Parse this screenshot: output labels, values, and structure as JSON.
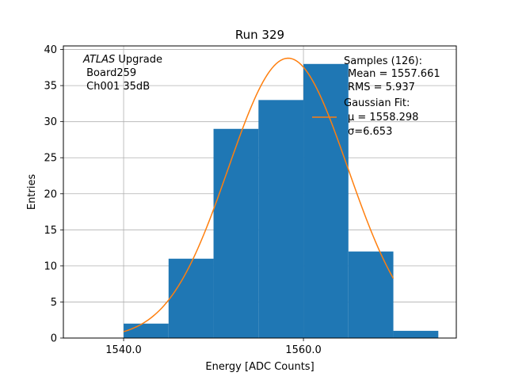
{
  "chart_data": {
    "type": "bar",
    "title": "Run 329",
    "xlabel": "Energy [ADC Counts]",
    "ylabel": "Entries",
    "xlim": [
      1533.3,
      1577.0
    ],
    "ylim": [
      0,
      40.5
    ],
    "grid": true,
    "bin_edges": [
      1540,
      1545,
      1550,
      1555,
      1560,
      1565,
      1570,
      1575
    ],
    "values": [
      2,
      11,
      29,
      33,
      38,
      12,
      1
    ],
    "x_ticks": [
      1540,
      1560
    ],
    "x_tick_labels": [
      "1540.0",
      "1560.0"
    ],
    "y_ticks": [
      0,
      5,
      10,
      15,
      20,
      25,
      30,
      35,
      40
    ],
    "y_tick_labels": [
      "0",
      "5",
      "10",
      "15",
      "20",
      "25",
      "30",
      "35",
      "40"
    ],
    "fit": {
      "type": "gaussian",
      "amplitude": 38.8,
      "mu": 1558.298,
      "sigma": 6.653,
      "x_range": [
        1540,
        1570
      ]
    },
    "annotation": {
      "line1_italic": "ATLAS",
      "line1_rest": " Upgrade",
      "line2": " Board259",
      "line3": " Ch001 35dB"
    },
    "legend": {
      "position": "top-right",
      "samples_title": "Samples (126):",
      "samples_mean": "Mean = 1557.661",
      "samples_rms": "RMS = 5.937",
      "fit_title": "Gaussian Fit:",
      "fit_mu": "μ = 1558.298",
      "fit_sigma": "σ=6.653"
    },
    "colors": {
      "bars": "#1f77b4",
      "fit_line": "#ff7f0e",
      "grid": "#b0b0b0"
    }
  }
}
